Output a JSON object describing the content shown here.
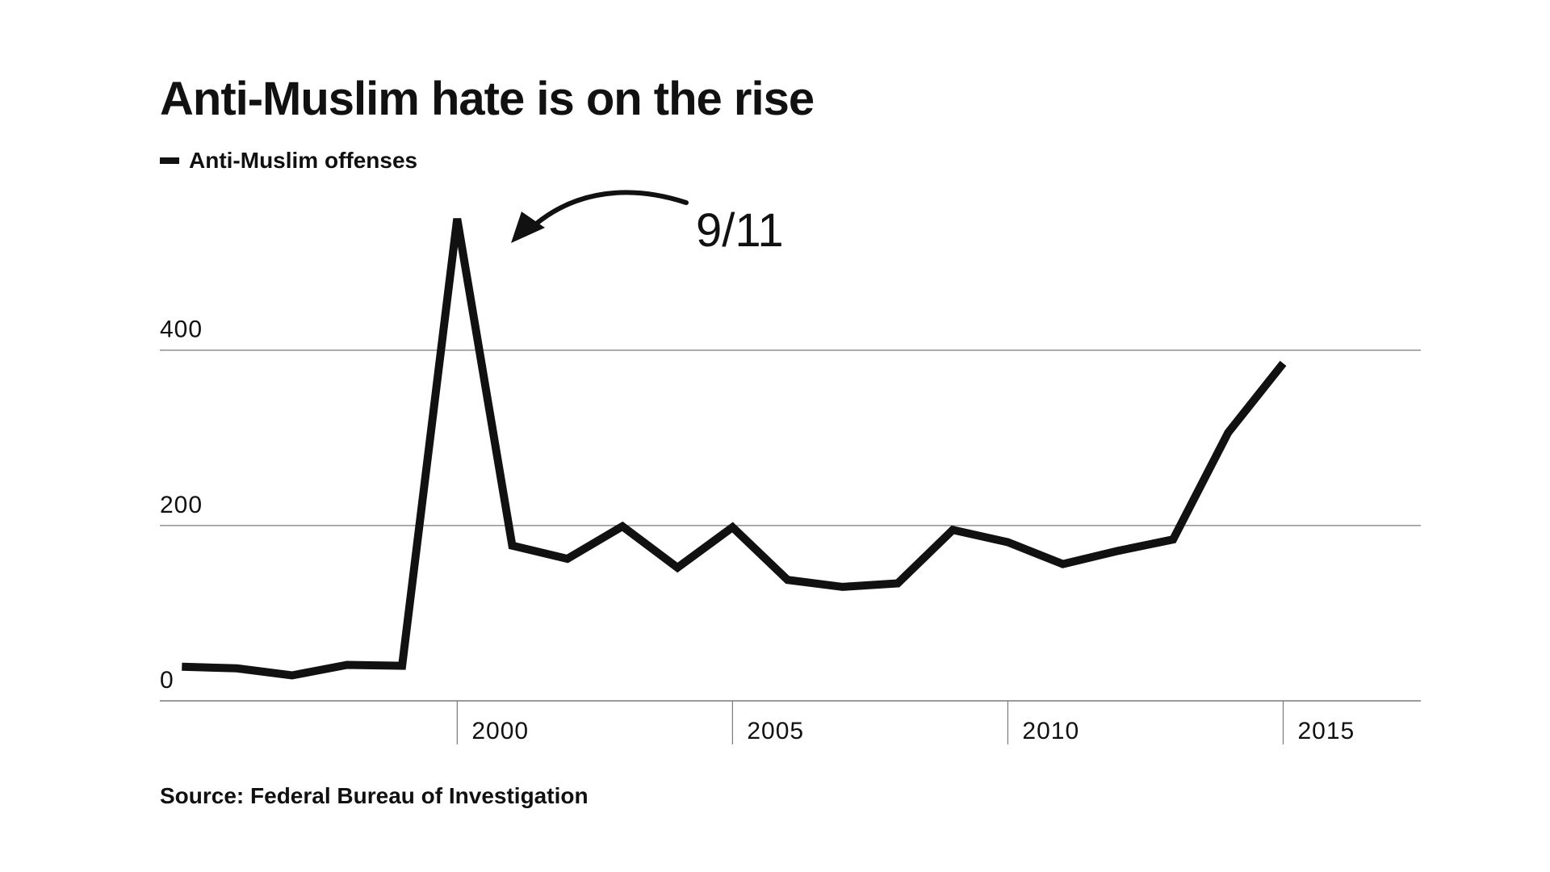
{
  "chart_data": {
    "type": "line",
    "title": "Anti-Muslim hate is on the rise",
    "xlabel": "",
    "ylabel": "",
    "x": [
      1995,
      1996,
      1997,
      1998,
      1999,
      2000,
      2001,
      2002,
      2003,
      2004,
      2005,
      2006,
      2007,
      2008,
      2009,
      2010,
      2011,
      2012,
      2013,
      2014,
      2015,
      2016
    ],
    "series": [
      {
        "name": "Anti-Muslim offenses",
        "color": "#111111",
        "values": [
          39,
          37,
          29,
          41,
          40,
          550,
          177,
          162,
          199,
          152,
          198,
          138,
          130,
          134,
          195,
          181,
          156,
          171,
          184,
          306,
          385,
          null
        ]
      }
    ],
    "xlim": [
      1994.6,
      2017.5
    ],
    "ylim": [
      0,
      560
    ],
    "x_ticks": [
      "2000",
      "2005",
      "2010",
      "2015"
    ],
    "x_tick_values": [
      2000,
      2005,
      2010,
      2015
    ],
    "y_ticks": [
      "0",
      "200",
      "400"
    ],
    "y_tick_values": [
      0,
      200,
      400
    ],
    "grid": true,
    "legend_position": "top-left",
    "annotation": {
      "text": "9/11",
      "x": 2001,
      "y": 550
    },
    "source": "Source: Federal Bureau of Investigation"
  }
}
